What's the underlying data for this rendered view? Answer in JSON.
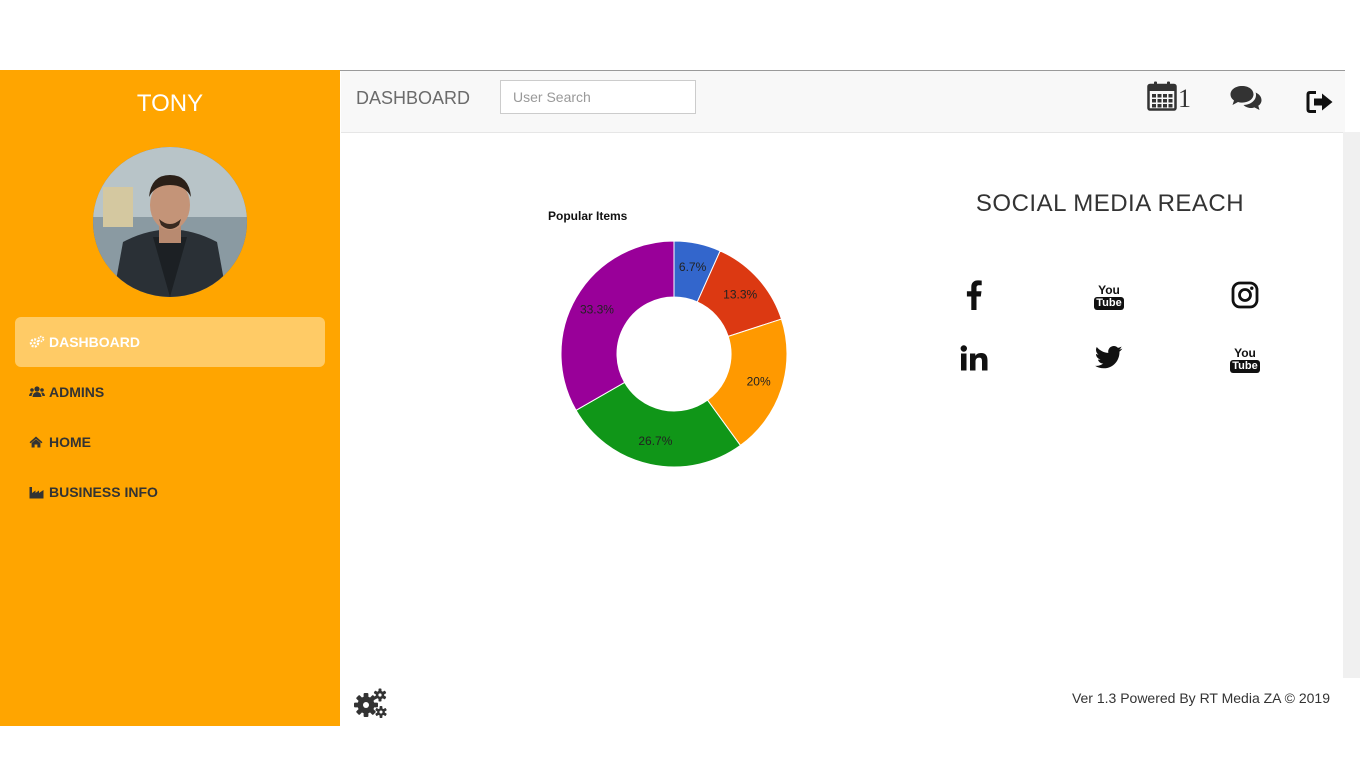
{
  "user": {
    "name": "TONY"
  },
  "sidebar": {
    "items": [
      {
        "label": "DASHBOARD",
        "icon": "cogs-icon"
      },
      {
        "label": "ADMINS",
        "icon": "users-icon"
      },
      {
        "label": "HOME",
        "icon": "home-icon"
      },
      {
        "label": "BUSINESS INFO",
        "icon": "industry-icon"
      }
    ]
  },
  "header": {
    "title": "DASHBOARD",
    "search_placeholder": "User Search",
    "calendar_count": "1"
  },
  "chart_data": {
    "type": "pie",
    "title": "Popular Items",
    "donut": true,
    "slices": [
      {
        "label": "6.7%",
        "value": 6.7,
        "color": "#3366cc"
      },
      {
        "label": "13.3%",
        "value": 13.3,
        "color": "#dc3912"
      },
      {
        "label": "20%",
        "value": 20,
        "color": "#ff9900"
      },
      {
        "label": "26.7%",
        "value": 26.7,
        "color": "#109618"
      },
      {
        "label": "33.3%",
        "value": 33.3,
        "color": "#990099"
      }
    ]
  },
  "social": {
    "title": "SOCIAL MEDIA REACH",
    "youtube_top": "You",
    "youtube_bottom": "Tube"
  },
  "footer": {
    "text": "Ver 1.3 Powered By RT Media ZA © 2019"
  },
  "colors": {
    "accent": "#ffa500",
    "active_item": "#ffcb66"
  }
}
